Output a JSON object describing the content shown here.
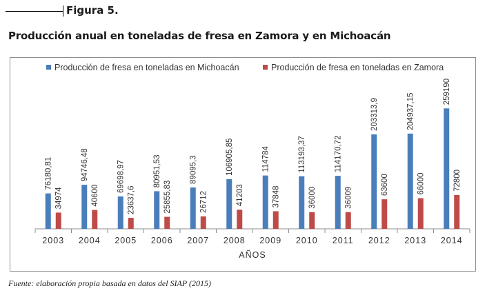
{
  "figure_label": "Figura 5.",
  "title": "Producción anual en toneladas de fresa en Zamora y en Michoacán",
  "source": "Fuente: elaboración propia basada en datos del SIAP (2015)",
  "colors": {
    "michoacan": "#4a7ebb",
    "zamora": "#be4b48"
  },
  "chart_data": {
    "type": "bar",
    "title": "Producción anual en toneladas de fresa en Zamora y en Michoacán",
    "xlabel": "AÑOS",
    "ylabel": "",
    "ylim": [
      0,
      270000
    ],
    "grid": false,
    "legend_position": "top",
    "categories": [
      "2003",
      "2004",
      "2005",
      "2006",
      "2007",
      "2008",
      "2009",
      "2010",
      "2011",
      "2012",
      "2013",
      "2014"
    ],
    "series": [
      {
        "name": "Producción de fresa en toneladas en Michoacán",
        "values": [
          76180.81,
          94746.48,
          69698.97,
          80951.53,
          89095.3,
          106905.85,
          114784,
          113193.37,
          114170.72,
          203313.9,
          204937.15,
          259190
        ],
        "labels": [
          "76180,81",
          "94746,48",
          "69698,97",
          "80951,53",
          "89095,3",
          "106905,85",
          "114784",
          "113193,37",
          "114170,72",
          "203313,9",
          "204937,15",
          "259190"
        ]
      },
      {
        "name": "Producción de fresa en toneladas en Zamora",
        "values": [
          34974,
          40600,
          23637.6,
          25855.83,
          26712,
          41203,
          37848,
          36000,
          36009,
          63600,
          66000,
          72800
        ],
        "labels": [
          "34974",
          "40600",
          "23637,6",
          "25855,83",
          "26712",
          "41203",
          "37848",
          "36000",
          "36009",
          "63600",
          "66000",
          "72800"
        ]
      }
    ]
  }
}
